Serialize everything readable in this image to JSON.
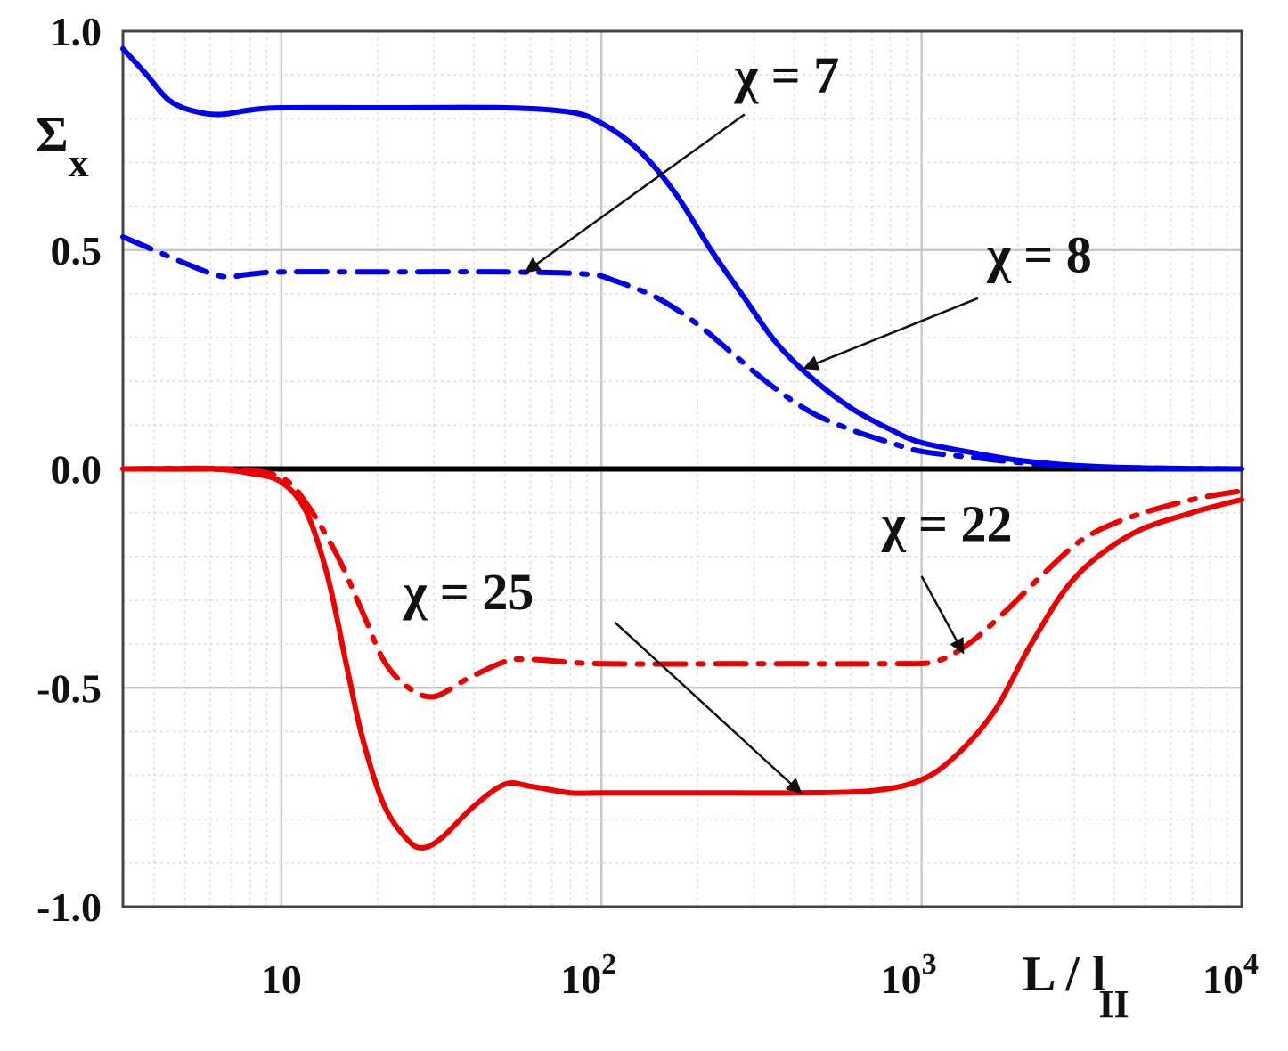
{
  "chart_data": {
    "type": "line",
    "title": "",
    "xlabel": {
      "main": "L / l",
      "sub": "II"
    },
    "ylabel": {
      "main": "Σ",
      "sub": "x"
    },
    "x_scale": "log",
    "xlim": [
      3.2,
      10000
    ],
    "ylim": [
      -1.0,
      1.0
    ],
    "grid": true,
    "x_ticks": [
      {
        "value": 10,
        "base": "10",
        "exp": ""
      },
      {
        "value": 100,
        "base": "10",
        "exp": "2"
      },
      {
        "value": 1000,
        "base": "10",
        "exp": "3"
      },
      {
        "value": 10000,
        "base": "10",
        "exp": "4"
      }
    ],
    "y_ticks": [
      {
        "value": 1.0,
        "label": "1.0"
      },
      {
        "value": 0.5,
        "label": "0.5"
      },
      {
        "value": 0.0,
        "label": "0.0"
      },
      {
        "value": -0.5,
        "label": "-0.5"
      },
      {
        "value": -1.0,
        "label": "-1.0"
      }
    ],
    "series": [
      {
        "color": "#0000ee",
        "dash": "solid",
        "points": [
          [
            3.2,
            0.96
          ],
          [
            3.8,
            0.9
          ],
          [
            4.5,
            0.84
          ],
          [
            5.5,
            0.815
          ],
          [
            6.5,
            0.81
          ],
          [
            8,
            0.82
          ],
          [
            10,
            0.825
          ],
          [
            20,
            0.825
          ],
          [
            50,
            0.825
          ],
          [
            80,
            0.815
          ],
          [
            100,
            0.79
          ],
          [
            130,
            0.73
          ],
          [
            170,
            0.63
          ],
          [
            220,
            0.5
          ],
          [
            280,
            0.39
          ],
          [
            350,
            0.29
          ],
          [
            450,
            0.21
          ],
          [
            600,
            0.14
          ],
          [
            800,
            0.09
          ],
          [
            1000,
            0.06
          ],
          [
            1500,
            0.035
          ],
          [
            2000,
            0.02
          ],
          [
            3000,
            0.008
          ],
          [
            5000,
            0.002
          ],
          [
            10000,
            0.0
          ]
        ]
      },
      {
        "color": "#0000ee",
        "dash": "dashdot",
        "points": [
          [
            3.2,
            0.53
          ],
          [
            4,
            0.5
          ],
          [
            5,
            0.47
          ],
          [
            6.5,
            0.44
          ],
          [
            8,
            0.445
          ],
          [
            10,
            0.45
          ],
          [
            20,
            0.45
          ],
          [
            50,
            0.45
          ],
          [
            90,
            0.445
          ],
          [
            110,
            0.43
          ],
          [
            150,
            0.39
          ],
          [
            200,
            0.33
          ],
          [
            260,
            0.26
          ],
          [
            340,
            0.19
          ],
          [
            450,
            0.13
          ],
          [
            600,
            0.09
          ],
          [
            800,
            0.06
          ],
          [
            1000,
            0.04
          ],
          [
            1500,
            0.025
          ],
          [
            2000,
            0.015
          ],
          [
            3000,
            0.006
          ],
          [
            5000,
            0.002
          ],
          [
            10000,
            0.0
          ]
        ]
      },
      {
        "color": "#ee0000",
        "dash": "solid",
        "points": [
          [
            3.2,
            0.0
          ],
          [
            6,
            0.0
          ],
          [
            8,
            -0.01
          ],
          [
            10,
            -0.03
          ],
          [
            12,
            -0.1
          ],
          [
            14,
            -0.25
          ],
          [
            16,
            -0.45
          ],
          [
            18,
            -0.62
          ],
          [
            21,
            -0.77
          ],
          [
            25,
            -0.85
          ],
          [
            28,
            -0.865
          ],
          [
            32,
            -0.84
          ],
          [
            40,
            -0.77
          ],
          [
            50,
            -0.72
          ],
          [
            60,
            -0.725
          ],
          [
            80,
            -0.74
          ],
          [
            100,
            -0.74
          ],
          [
            200,
            -0.74
          ],
          [
            400,
            -0.74
          ],
          [
            700,
            -0.735
          ],
          [
            1000,
            -0.71
          ],
          [
            1300,
            -0.65
          ],
          [
            1700,
            -0.55
          ],
          [
            2200,
            -0.4
          ],
          [
            3000,
            -0.25
          ],
          [
            4500,
            -0.15
          ],
          [
            7000,
            -0.1
          ],
          [
            10000,
            -0.07
          ]
        ]
      },
      {
        "color": "#ee0000",
        "dash": "dashdot",
        "points": [
          [
            3.2,
            0.0
          ],
          [
            7,
            0.0
          ],
          [
            10,
            -0.02
          ],
          [
            12,
            -0.08
          ],
          [
            15,
            -0.2
          ],
          [
            18,
            -0.33
          ],
          [
            21,
            -0.44
          ],
          [
            25,
            -0.5
          ],
          [
            30,
            -0.52
          ],
          [
            38,
            -0.48
          ],
          [
            50,
            -0.44
          ],
          [
            60,
            -0.435
          ],
          [
            100,
            -0.445
          ],
          [
            300,
            -0.445
          ],
          [
            800,
            -0.445
          ],
          [
            1100,
            -0.44
          ],
          [
            1400,
            -0.4
          ],
          [
            1800,
            -0.33
          ],
          [
            2400,
            -0.24
          ],
          [
            3200,
            -0.16
          ],
          [
            4500,
            -0.11
          ],
          [
            7000,
            -0.07
          ],
          [
            10000,
            -0.05
          ]
        ]
      }
    ],
    "annotations": [
      {
        "label": "χ = 7",
        "text_pos": [
          260,
          0.86
        ],
        "anchor": "start",
        "arrow_from": [
          280,
          0.81
        ],
        "arrow_to": [
          58,
          0.45
        ]
      },
      {
        "label": "χ = 8",
        "text_pos": [
          1600,
          0.45
        ],
        "anchor": "start",
        "arrow_from": [
          1500,
          0.39
        ],
        "arrow_to": [
          430,
          0.23
        ]
      },
      {
        "label": "χ = 22",
        "text_pos": [
          750,
          -0.165
        ],
        "anchor": "start",
        "arrow_from": [
          1000,
          -0.245
        ],
        "arrow_to": [
          1350,
          -0.42
        ]
      },
      {
        "label": "χ = 25",
        "text_pos": [
          24,
          -0.32
        ],
        "anchor": "start",
        "arrow_from": [
          110,
          -0.35
        ],
        "arrow_to": [
          420,
          -0.74
        ]
      }
    ]
  }
}
